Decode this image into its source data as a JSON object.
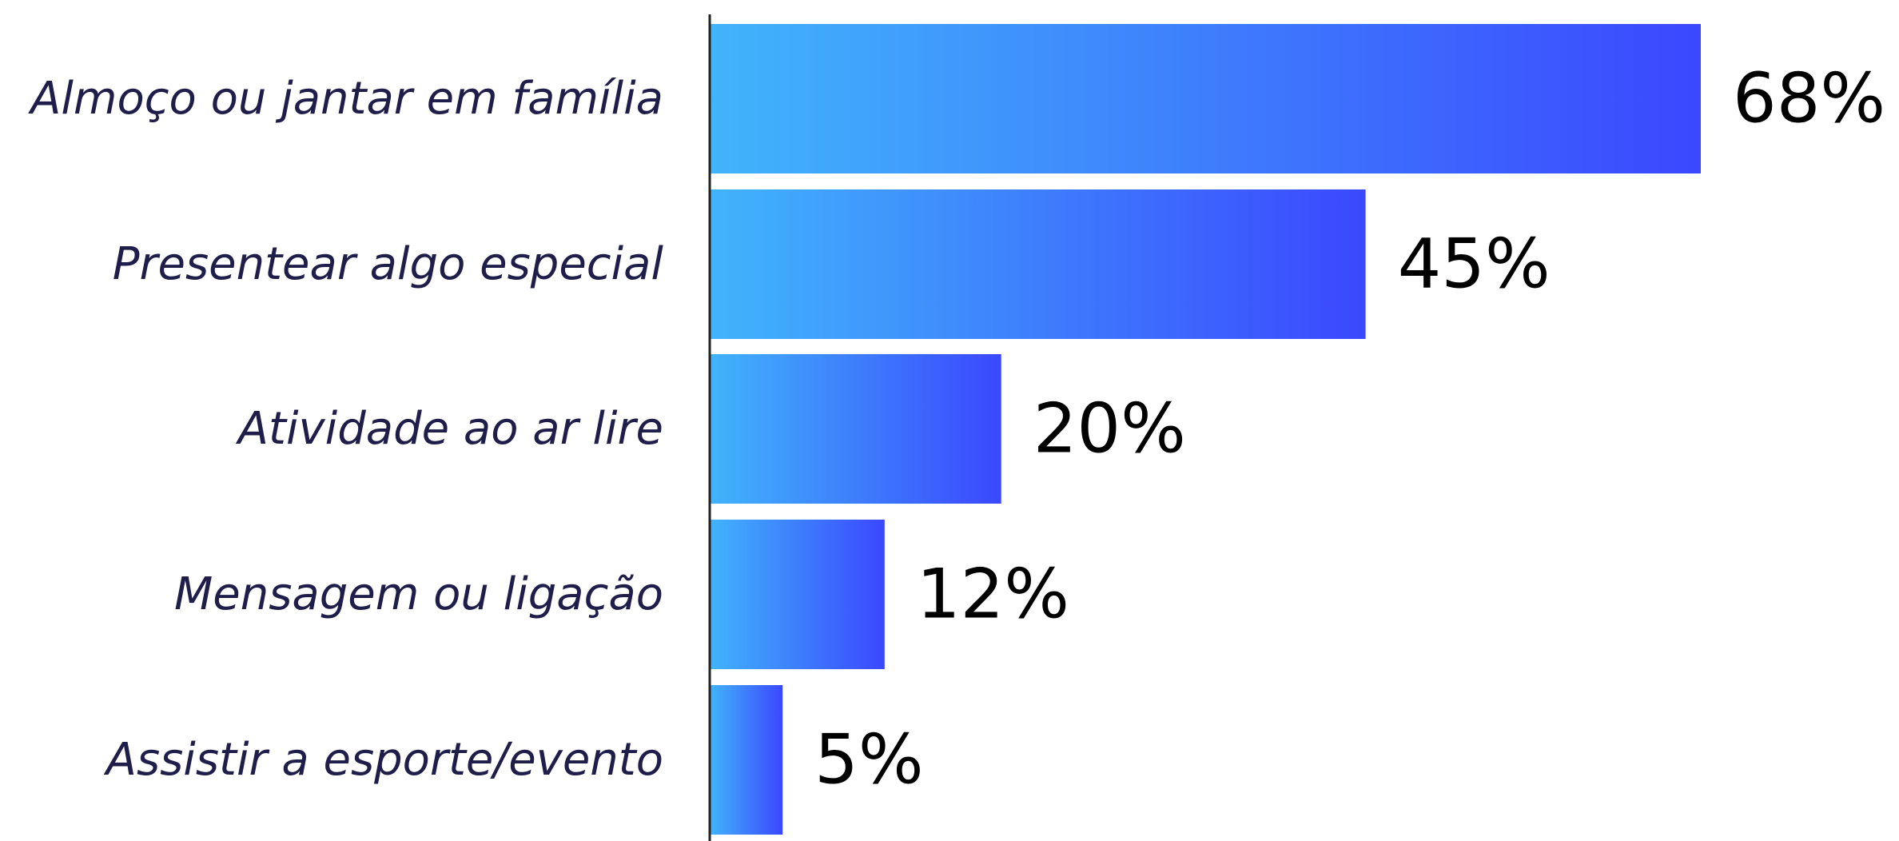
{
  "chart_data": {
    "type": "bar",
    "orientation": "horizontal",
    "categories": [
      "Almoço ou jantar em família",
      "Presentear algo especial",
      "Atividade ao ar lire",
      "Mensagem ou ligação",
      "Assistir a esporte/evento"
    ],
    "values": [
      68,
      45,
      20,
      12,
      5
    ],
    "value_labels": [
      "68%",
      "45%",
      "20%",
      "12%",
      "5%"
    ],
    "xlim": [
      0,
      68
    ],
    "grid": false,
    "legend": "none",
    "colors": {
      "bar_start": "#41b4fb",
      "bar_end": "#3b48fe",
      "axis": "#222222",
      "category_text": "#1f1d4a",
      "value_text": "#000000"
    }
  }
}
